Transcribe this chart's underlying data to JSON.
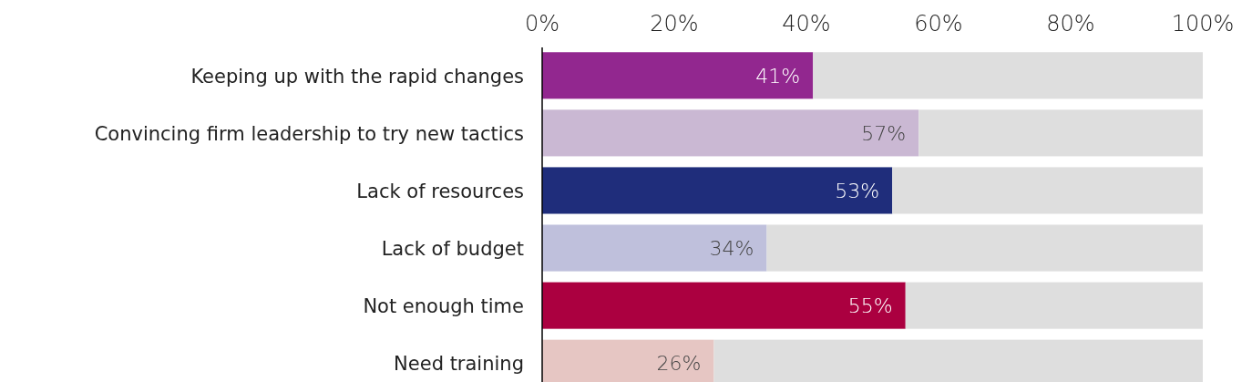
{
  "chart_data": {
    "type": "bar",
    "orientation": "horizontal",
    "stacked": true,
    "categories": [
      "Keeping up with the rapid changes",
      "Convincing firm leadership to try new tactics",
      "Lack of resources",
      "Lack of budget",
      "Not enough time",
      "Need training"
    ],
    "series": [
      {
        "colors": [
          "#92278f",
          "#cab8d3",
          "#1f2d7b",
          "#bfc0dc",
          "#ab0040",
          "#e6c6c3"
        ],
        "values": [
          41,
          57,
          53,
          34,
          55,
          26
        ],
        "value_labels": [
          "41%",
          "57%",
          "53%",
          "34%",
          "55%",
          "26%"
        ]
      },
      {
        "color": "#dedede",
        "values": [
          59,
          43,
          47,
          66,
          45,
          74
        ]
      }
    ],
    "xlim": [
      0,
      100
    ],
    "xticks": [
      {
        "value": 0,
        "label": "0%"
      },
      {
        "value": 20,
        "label": "20%"
      },
      {
        "value": 40,
        "label": "40%"
      },
      {
        "value": 60,
        "label": "60%"
      },
      {
        "value": 80,
        "label": "80%"
      },
      {
        "value": 100,
        "label": "100%"
      }
    ],
    "grid": false
  }
}
